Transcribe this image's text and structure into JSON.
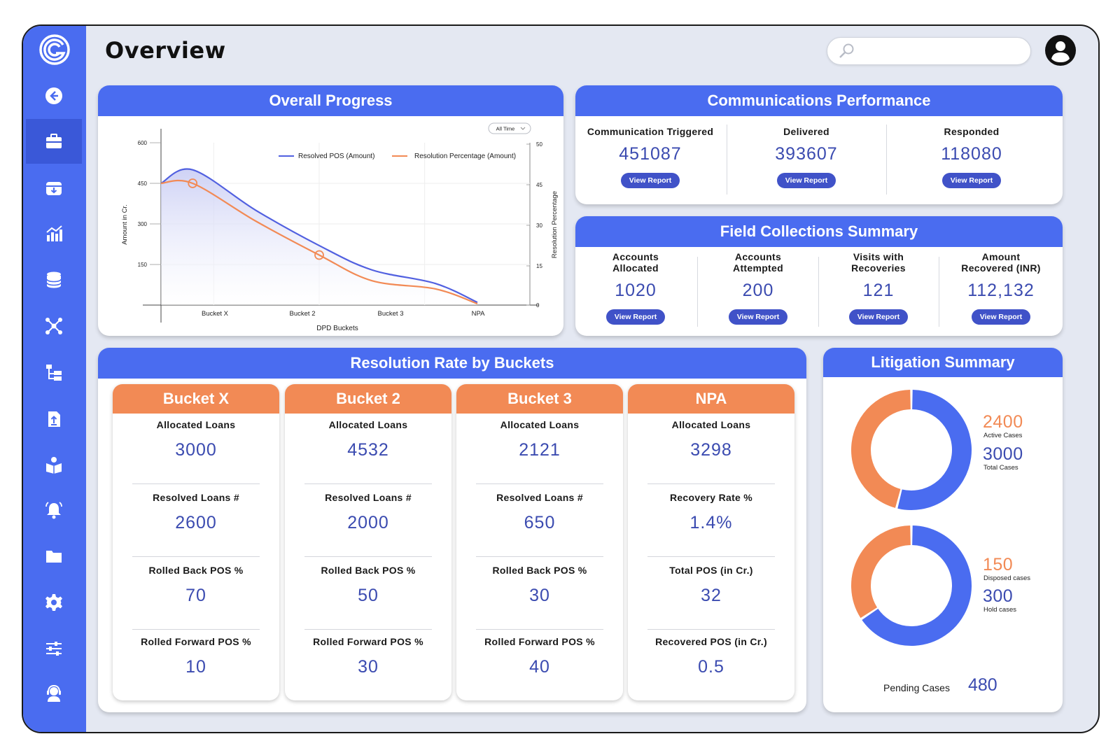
{
  "header": {
    "title": "Overview",
    "search_placeholder": ""
  },
  "sidebar": {
    "items": [
      {
        "name": "back"
      },
      {
        "name": "briefcase",
        "active": true
      },
      {
        "name": "inbox-download"
      },
      {
        "name": "analytics"
      },
      {
        "name": "database"
      },
      {
        "name": "network"
      },
      {
        "name": "hierarchy"
      },
      {
        "name": "upload"
      },
      {
        "name": "reading"
      },
      {
        "name": "bell"
      },
      {
        "name": "folder"
      },
      {
        "name": "gear"
      },
      {
        "name": "sliders"
      },
      {
        "name": "support"
      }
    ]
  },
  "overall_progress": {
    "title": "Overall Progress",
    "filter": "All Time",
    "chart_data": {
      "type": "line",
      "categories": [
        "Bucket X",
        "Bucket 2",
        "Bucket 3",
        "NPA"
      ],
      "xlabel": "DPD Buckets",
      "ylabel": "Amount in Cr.",
      "y2label": "Resolution Percentage",
      "yticks": [
        "600",
        "450",
        "300",
        "150"
      ],
      "y2ticks": [
        "50",
        "45",
        "30",
        "15",
        "0"
      ],
      "ylim": [
        0,
        600
      ],
      "series": [
        {
          "name": "Resolved POS (Amount)",
          "color": "#5160e0",
          "x": [
            0,
            0.3,
            0.9,
            1.5,
            2.0,
            2.6,
            3.0
          ],
          "values": [
            450,
            500,
            350,
            220,
            130,
            80,
            10
          ]
        },
        {
          "name": "Resolution Percentage (Amount)",
          "color": "#f28a55",
          "x": [
            0,
            0.3,
            0.9,
            1.5,
            2.0,
            2.6,
            3.0
          ],
          "values": [
            450,
            450,
            310,
            185,
            90,
            60,
            5
          ]
        }
      ],
      "legend": "top-right",
      "grid": false
    }
  },
  "communications": {
    "title": "Communications Performance",
    "button_label": "View Report",
    "metrics": [
      {
        "label": "Communication Triggered",
        "value": "451087"
      },
      {
        "label": "Delivered",
        "value": "393607"
      },
      {
        "label": "Responded",
        "value": "118080"
      }
    ]
  },
  "field": {
    "title": "Field Collections Summary",
    "button_label": "View Report",
    "metrics": [
      {
        "label1": "Accounts",
        "label2": "Allocated",
        "value": "1020"
      },
      {
        "label1": "Accounts",
        "label2": "Attempted",
        "value": "200"
      },
      {
        "label1": "Visits with",
        "label2": "Recoveries",
        "value": "121"
      },
      {
        "label1": "Amount",
        "label2": "Recovered (INR)",
        "value": "112,132"
      }
    ]
  },
  "resolution": {
    "title": "Resolution Rate by Buckets",
    "buckets": [
      {
        "name": "Bucket X",
        "rows": [
          {
            "label": "Allocated Loans",
            "value": "3000"
          },
          {
            "label": "Resolved Loans #",
            "value": "2600"
          },
          {
            "label": "Rolled Back POS %",
            "value": "70"
          },
          {
            "label": "Rolled Forward POS %",
            "value": "10"
          }
        ]
      },
      {
        "name": "Bucket 2",
        "rows": [
          {
            "label": "Allocated Loans",
            "value": "4532"
          },
          {
            "label": "Resolved Loans #",
            "value": "2000"
          },
          {
            "label": "Rolled Back POS %",
            "value": "50"
          },
          {
            "label": "Rolled Forward POS %",
            "value": "30"
          }
        ]
      },
      {
        "name": "Bucket 3",
        "rows": [
          {
            "label": "Allocated Loans",
            "value": "2121"
          },
          {
            "label": "Resolved Loans #",
            "value": "650"
          },
          {
            "label": "Rolled Back POS %",
            "value": "30"
          },
          {
            "label": "Rolled Forward POS %",
            "value": "40"
          }
        ]
      },
      {
        "name": "NPA",
        "rows": [
          {
            "label": "Allocated Loans",
            "value": "3298"
          },
          {
            "label": "Recovery Rate %",
            "value": "1.4%"
          },
          {
            "label": "Total POS (in Cr.)",
            "value": "32"
          },
          {
            "label": "Recovered POS (in Cr.)",
            "value": "0.5"
          }
        ]
      }
    ]
  },
  "litigation": {
    "title": "Litigation Summary",
    "active_value": "2400",
    "active_label": "Active Cases",
    "total_value": "3000",
    "total_label": "Total Cases",
    "disposed_value": "150",
    "disposed_label": "Disposed cases",
    "hold_value": "300",
    "hold_label": "Hold cases",
    "pending_label": "Pending Cases",
    "pending_value": "480",
    "colors": {
      "primary": "#4a6cf0",
      "secondary": "#f28a55"
    }
  }
}
